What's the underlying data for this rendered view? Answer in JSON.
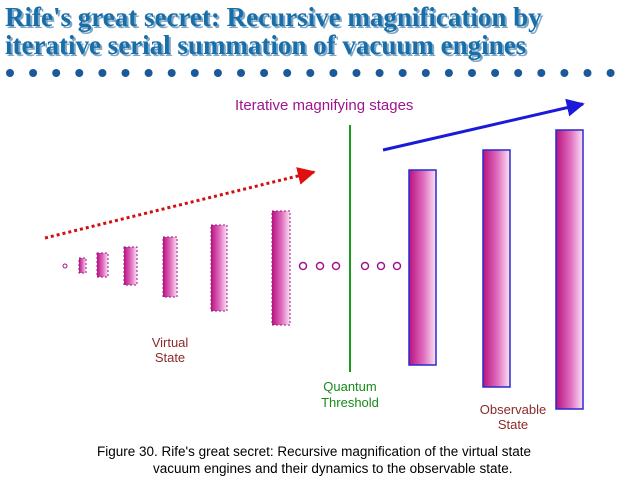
{
  "title": {
    "lines": [
      "Rife's great secret: Recursive magnification by",
      "iterative serial summation of vacuum engines"
    ]
  },
  "stages_label": "Iterative magnifying stages",
  "virtual_label": {
    "lines": [
      "Virtual",
      "State"
    ]
  },
  "threshold_label": {
    "lines": [
      "Quantum",
      "Threshold"
    ]
  },
  "observable_label": {
    "lines": [
      "Observable",
      "State"
    ]
  },
  "caption": {
    "lines": [
      "Figure 30.  Rife's great secret: Recursive magnification of the virtual state",
      "vacuum engines and their dynamics to the observable state."
    ]
  }
}
